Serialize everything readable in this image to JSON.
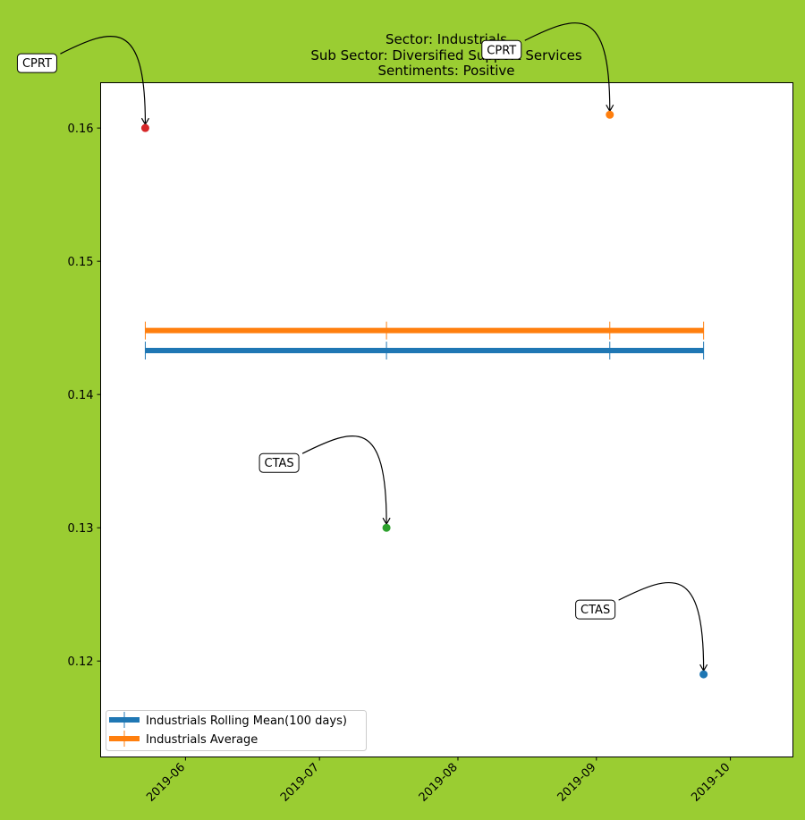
{
  "chart_data": {
    "type": "scatter",
    "title_lines": [
      "Sector:  Industrials",
      "Sub Sector:  Diversified Support Services",
      "Sentiments:  Positive"
    ],
    "xlabel": "",
    "ylabel": "",
    "x_axis": {
      "type": "date",
      "range": [
        "2019-05-13",
        "2019-10-15"
      ],
      "ticks": [
        "2019-06-01",
        "2019-07-01",
        "2019-08-01",
        "2019-09-01",
        "2019-10-01"
      ],
      "tick_labels": [
        "2019-06",
        "2019-07",
        "2019-08",
        "2019-09",
        "2019-10"
      ]
    },
    "y_axis": {
      "range": [
        0.1128,
        0.1634
      ],
      "ticks": [
        0.12,
        0.13,
        0.14,
        0.15,
        0.16
      ],
      "tick_labels": [
        "0.12",
        "0.13",
        "0.14",
        "0.15",
        "0.16"
      ]
    },
    "grid": false,
    "legend_position": "lower-left",
    "points": [
      {
        "x": "2019-05-23",
        "y": 0.16,
        "label": "CPRT",
        "color": "#d62728"
      },
      {
        "x": "2019-09-04",
        "y": 0.161,
        "label": "CPRT",
        "color": "#ff7f0e"
      },
      {
        "x": "2019-07-16",
        "y": 0.13,
        "label": "CTAS",
        "color": "#2ca02c"
      },
      {
        "x": "2019-09-25",
        "y": 0.119,
        "label": "CTAS",
        "color": "#1f77b4"
      }
    ],
    "series": [
      {
        "name": "Industrials Rolling Mean(100 days)",
        "color": "#1f77b4",
        "x": [
          "2019-05-23",
          "2019-07-16",
          "2019-09-04",
          "2019-09-25"
        ],
        "y": [
          0.1433,
          0.1433,
          0.1433,
          0.1433
        ]
      },
      {
        "name": "Industrials Average",
        "color": "#ff7f0e",
        "x": [
          "2019-05-23",
          "2019-07-16",
          "2019-09-04",
          "2019-09-25"
        ],
        "y": [
          0.1448,
          0.1448,
          0.1448,
          0.1448
        ]
      }
    ]
  }
}
